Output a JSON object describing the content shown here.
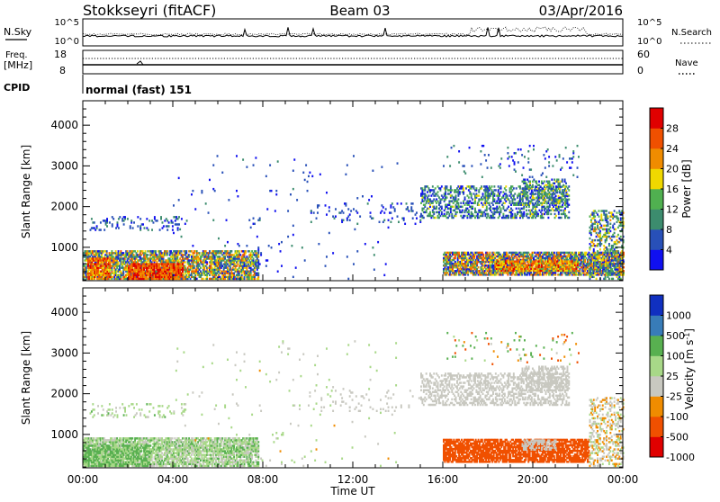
{
  "header": {
    "station": "Stokkseyri (fitACF)",
    "beam": "Beam 03",
    "date": "03/Apr/2016"
  },
  "top_panels": {
    "nsky": {
      "label": "N.Sky",
      "left_ticks": [
        "10^5",
        "10^0"
      ],
      "right_ticks": [
        "10^5",
        "10^0"
      ],
      "right_label": "N.Search"
    },
    "freq": {
      "label_line1": "Freq.",
      "label_line2": "[MHz]",
      "left_ticks": [
        "18",
        "8"
      ],
      "right_ticks": [
        "60",
        "0"
      ],
      "right_label": "Nave"
    },
    "cpid": {
      "label": "CPID",
      "text": "normal (fast) 151"
    }
  },
  "colors": {
    "power": [
      "#1010f0",
      "#2850b8",
      "#3c8c6e",
      "#50b050",
      "#f0d800",
      "#f08c00",
      "#f05000",
      "#e00000"
    ],
    "velocity": [
      "#e00000",
      "#f05000",
      "#f08c00",
      "#c8c8c0",
      "#a8d888",
      "#58b050",
      "#387cb8",
      "#1030c0"
    ]
  },
  "chart_data": [
    {
      "type": "heatmap",
      "title": "",
      "xlabel": "Time UT",
      "ylabel": "Slant Range [km]",
      "xlim": [
        "00:00",
        "24:00"
      ],
      "ylim": [
        180,
        4600
      ],
      "x_ticks": [
        "00:00",
        "04:00",
        "08:00",
        "12:00",
        "16:00",
        "20:00",
        "00:00"
      ],
      "y_ticks": [
        "1000",
        "2000",
        "3000",
        "4000"
      ],
      "colorbar": {
        "label": "Power [dB]",
        "ticks": [
          "4",
          "8",
          "12",
          "16",
          "20",
          "24",
          "28"
        ],
        "min": 0,
        "max": 32
      },
      "scatter_regions": [
        {
          "t": [
            0.0,
            7.8
          ],
          "r": [
            200,
            900
          ],
          "value": 14,
          "spread": 12,
          "density": 0.75
        },
        {
          "t": [
            2.0,
            4.4
          ],
          "r": [
            200,
            600
          ],
          "value": 26,
          "spread": 6,
          "density": 0.85
        },
        {
          "t": [
            0.2,
            1.2
          ],
          "r": [
            200,
            700
          ],
          "value": 24,
          "spread": 6,
          "density": 0.8
        },
        {
          "t": [
            0.3,
            4.6
          ],
          "r": [
            1400,
            1750
          ],
          "value": 6,
          "spread": 6,
          "density": 0.15
        },
        {
          "t": [
            4.0,
            14.0
          ],
          "r": [
            200,
            3300
          ],
          "value": 5,
          "spread": 4,
          "density": 0.012
        },
        {
          "t": [
            10.0,
            15.0
          ],
          "r": [
            1550,
            2050
          ],
          "value": 5,
          "spread": 4,
          "density": 0.06
        },
        {
          "t": [
            15.0,
            21.6
          ],
          "r": [
            1700,
            2500
          ],
          "value": 9,
          "spread": 8,
          "density": 0.45
        },
        {
          "t": [
            19.5,
            21.5
          ],
          "r": [
            2050,
            2650
          ],
          "value": 11,
          "spread": 8,
          "density": 0.4
        },
        {
          "t": [
            16.0,
            24.0
          ],
          "r": [
            300,
            850
          ],
          "value": 14,
          "spread": 14,
          "density": 0.8
        },
        {
          "t": [
            18.3,
            22.0
          ],
          "r": [
            400,
            650
          ],
          "value": 22,
          "spread": 8,
          "density": 0.7
        },
        {
          "t": [
            22.5,
            24.0
          ],
          "r": [
            200,
            1900
          ],
          "value": 12,
          "spread": 10,
          "density": 0.35
        },
        {
          "t": [
            16.0,
            22.0
          ],
          "r": [
            2700,
            3500
          ],
          "value": 6,
          "spread": 6,
          "density": 0.04
        }
      ]
    },
    {
      "type": "heatmap",
      "title": "",
      "xlabel": "Time UT",
      "ylabel": "Slant Range [km]",
      "xlim": [
        "00:00",
        "24:00"
      ],
      "ylim": [
        180,
        4600
      ],
      "x_ticks": [
        "00:00",
        "04:00",
        "08:00",
        "12:00",
        "16:00",
        "20:00",
        "00:00"
      ],
      "y_ticks": [
        "1000",
        "2000",
        "3000",
        "4000"
      ],
      "colorbar": {
        "label": "Velocity [m s^-1]",
        "ticks": [
          "1000",
          "500",
          "100",
          "25",
          "-25",
          "-100",
          "-500",
          "-1000"
        ],
        "min": -1000,
        "max": 1000
      },
      "scatter_regions": [
        {
          "t": [
            0.0,
            7.8
          ],
          "r": [
            200,
            900
          ],
          "value": 60,
          "spread": 80,
          "density": 0.75
        },
        {
          "t": [
            0.0,
            3.0
          ],
          "r": [
            200,
            700
          ],
          "value": 140,
          "spread": 120,
          "density": 0.7
        },
        {
          "t": [
            0.3,
            4.6
          ],
          "r": [
            1400,
            1750
          ],
          "value": 50,
          "spread": 60,
          "density": 0.15
        },
        {
          "t": [
            4.0,
            14.0
          ],
          "r": [
            200,
            3300
          ],
          "value": 30,
          "spread": 60,
          "density": 0.012
        },
        {
          "t": [
            10.0,
            15.0
          ],
          "r": [
            1550,
            2050
          ],
          "value": 0,
          "spread": 20,
          "density": 0.06
        },
        {
          "t": [
            15.0,
            21.6
          ],
          "r": [
            1700,
            2500
          ],
          "value": 0,
          "spread": 20,
          "density": 0.45
        },
        {
          "t": [
            19.5,
            21.5
          ],
          "r": [
            2050,
            2650
          ],
          "value": 0,
          "spread": 20,
          "density": 0.4
        },
        {
          "t": [
            16.0,
            22.5
          ],
          "r": [
            300,
            850
          ],
          "value": -250,
          "spread": 120,
          "density": 0.8
        },
        {
          "t": [
            19.5,
            21.0
          ],
          "r": [
            600,
            850
          ],
          "value": 0,
          "spread": 20,
          "density": 0.6
        },
        {
          "t": [
            22.5,
            24.0
          ],
          "r": [
            200,
            1900
          ],
          "value": 0,
          "spread": 60,
          "density": 0.35
        },
        {
          "t": [
            16.0,
            22.0
          ],
          "r": [
            2700,
            3500
          ],
          "value": 100,
          "spread": 300,
          "density": 0.04
        }
      ]
    }
  ]
}
